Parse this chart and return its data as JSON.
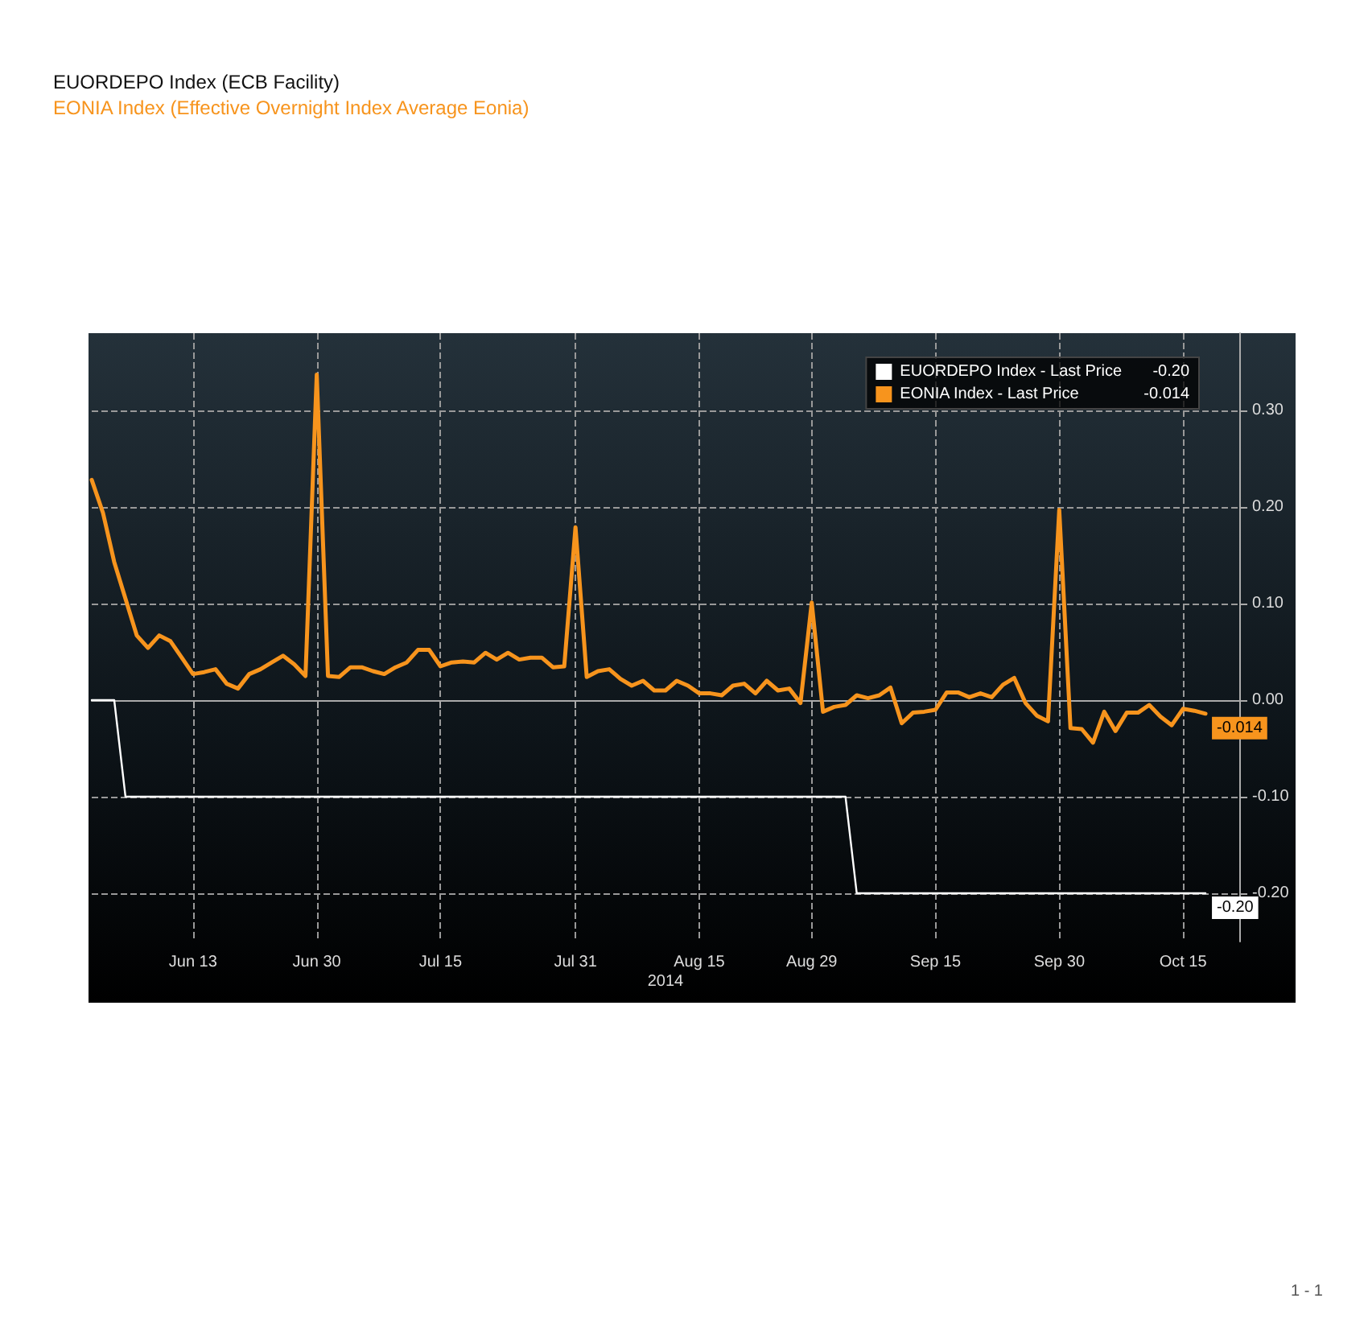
{
  "chart_data": {
    "type": "line",
    "title": "EUORDEPO Index (ECB Facility)",
    "subtitle": "EONIA Index (Effective Overnight Index Average Eonia)",
    "xlabel": "2014",
    "categories": [
      null,
      null,
      null,
      null,
      null,
      null,
      null,
      null,
      null,
      "Jun 13",
      null,
      null,
      null,
      null,
      null,
      null,
      null,
      null,
      null,
      null,
      "Jun 30",
      null,
      null,
      null,
      null,
      null,
      null,
      null,
      null,
      null,
      null,
      "Jul 15",
      null,
      null,
      null,
      null,
      null,
      null,
      null,
      null,
      null,
      null,
      null,
      "Jul 31",
      null,
      null,
      null,
      null,
      null,
      null,
      null,
      null,
      null,
      null,
      "Aug 15",
      null,
      null,
      null,
      null,
      null,
      null,
      null,
      null,
      null,
      "Aug 29",
      null,
      null,
      null,
      null,
      null,
      null,
      null,
      null,
      null,
      null,
      "Sep 15",
      null,
      null,
      null,
      null,
      null,
      null,
      null,
      null,
      null,
      null,
      "Sep 30",
      null,
      null,
      null,
      null,
      null,
      null,
      null,
      null,
      null,
      null,
      "Oct 15",
      null,
      null
    ],
    "series": [
      {
        "name": "EUORDEPO Index - Last Price",
        "color": "#ffffff",
        "values": [
          0,
          0,
          0,
          -0.1,
          -0.1,
          -0.1,
          -0.1,
          -0.1,
          -0.1,
          -0.1,
          -0.1,
          -0.1,
          -0.1,
          -0.1,
          -0.1,
          -0.1,
          -0.1,
          -0.1,
          -0.1,
          -0.1,
          -0.1,
          -0.1,
          -0.1,
          -0.1,
          -0.1,
          -0.1,
          -0.1,
          -0.1,
          -0.1,
          -0.1,
          -0.1,
          -0.1,
          -0.1,
          -0.1,
          -0.1,
          -0.1,
          -0.1,
          -0.1,
          -0.1,
          -0.1,
          -0.1,
          -0.1,
          -0.1,
          -0.1,
          -0.1,
          -0.1,
          -0.1,
          -0.1,
          -0.1,
          -0.1,
          -0.1,
          -0.1,
          -0.1,
          -0.1,
          -0.1,
          -0.1,
          -0.1,
          -0.1,
          -0.1,
          -0.1,
          -0.1,
          -0.1,
          -0.1,
          -0.1,
          -0.1,
          -0.1,
          -0.1,
          -0.1,
          -0.2,
          -0.2,
          -0.2,
          -0.2,
          -0.2,
          -0.2,
          -0.2,
          -0.2,
          -0.2,
          -0.2,
          -0.2,
          -0.2,
          -0.2,
          -0.2,
          -0.2,
          -0.2,
          -0.2,
          -0.2,
          -0.2,
          -0.2,
          -0.2,
          -0.2,
          -0.2,
          -0.2,
          -0.2,
          -0.2,
          -0.2,
          -0.2,
          -0.2,
          -0.2,
          -0.2,
          -0.2
        ],
        "value_labels": [
          null,
          null,
          null,
          null,
          null,
          null,
          null,
          null,
          null,
          null,
          null,
          null,
          null,
          null,
          null,
          null,
          null,
          null,
          null,
          null,
          null,
          null,
          null,
          null,
          null,
          null,
          null,
          null,
          null,
          null,
          null,
          null,
          null,
          null,
          null,
          null,
          null,
          null,
          null,
          null,
          null,
          null,
          null,
          null,
          null,
          null,
          null,
          null,
          null,
          null,
          null,
          null,
          null,
          null,
          null,
          null,
          null,
          null,
          null,
          null,
          null,
          null,
          null,
          null,
          null,
          null,
          null,
          null,
          null,
          null,
          null,
          null,
          null,
          null,
          null,
          null,
          null,
          null,
          null,
          null,
          null,
          null,
          null,
          null,
          null,
          null,
          null,
          null,
          null,
          null,
          null,
          null,
          null,
          null,
          null,
          null,
          null,
          null,
          null,
          "-0.20"
        ]
      },
      {
        "name": "EONIA Index - Last Price",
        "color": "#f7941d",
        "values": [
          0.228,
          0.194,
          0.143,
          0.105,
          0.067,
          0.054,
          0.067,
          0.061,
          0.044,
          0.027,
          0.029,
          0.032,
          0.017,
          0.012,
          0.027,
          0.032,
          0.039,
          0.046,
          0.037,
          0.025,
          0.337,
          0.025,
          0.024,
          0.034,
          0.034,
          0.03,
          0.027,
          0.034,
          0.039,
          0.052,
          0.052,
          0.035,
          0.039,
          0.04,
          0.039,
          0.049,
          0.042,
          0.049,
          0.042,
          0.044,
          0.044,
          0.034,
          0.035,
          0.179,
          0.024,
          0.03,
          0.032,
          0.022,
          0.015,
          0.02,
          0.01,
          0.01,
          0.02,
          0.015,
          0.007,
          0.007,
          0.005,
          0.015,
          0.017,
          0.007,
          0.02,
          0.01,
          0.012,
          -0.003,
          0.101,
          -0.012,
          -0.007,
          -0.005,
          0.005,
          0.002,
          0.005,
          0.013,
          -0.024,
          -0.013,
          -0.012,
          -0.01,
          0.008,
          0.008,
          0.003,
          0.007,
          0.003,
          0.016,
          0.023,
          -0.003,
          -0.016,
          -0.022,
          0.197,
          -0.029,
          -0.03,
          -0.044,
          -0.012,
          -0.032,
          -0.013,
          -0.013,
          -0.005,
          -0.017,
          -0.026,
          -0.009,
          -0.011,
          -0.014
        ],
        "value_labels": [
          null,
          null,
          null,
          null,
          null,
          null,
          null,
          null,
          null,
          null,
          null,
          null,
          null,
          null,
          null,
          null,
          null,
          null,
          null,
          null,
          null,
          null,
          null,
          null,
          null,
          null,
          null,
          null,
          null,
          null,
          null,
          null,
          null,
          null,
          null,
          null,
          null,
          null,
          null,
          null,
          null,
          null,
          null,
          null,
          null,
          null,
          null,
          null,
          null,
          null,
          null,
          null,
          null,
          null,
          null,
          null,
          null,
          null,
          null,
          null,
          null,
          null,
          null,
          null,
          null,
          null,
          null,
          null,
          null,
          null,
          null,
          null,
          null,
          null,
          null,
          null,
          null,
          null,
          null,
          null,
          null,
          null,
          null,
          null,
          null,
          null,
          null,
          null,
          null,
          null,
          null,
          null,
          null,
          null,
          null,
          null,
          null,
          null,
          null,
          "-0.014"
        ]
      }
    ],
    "ylim": [
      -0.25,
      0.38
    ],
    "yticks": [
      {
        "value": 0.3,
        "label": "0.30"
      },
      {
        "value": 0.2,
        "label": "0.20"
      },
      {
        "value": 0.1,
        "label": "0.10"
      },
      {
        "value": 0,
        "label": "0.00"
      },
      {
        "value": -0.1,
        "label": "-0.10"
      },
      {
        "value": -0.2,
        "label": "-0.20"
      }
    ],
    "grid": true,
    "legend": "top right",
    "marker": "none",
    "line_style": "solid",
    "annotations": [
      "1 - 1"
    ]
  }
}
